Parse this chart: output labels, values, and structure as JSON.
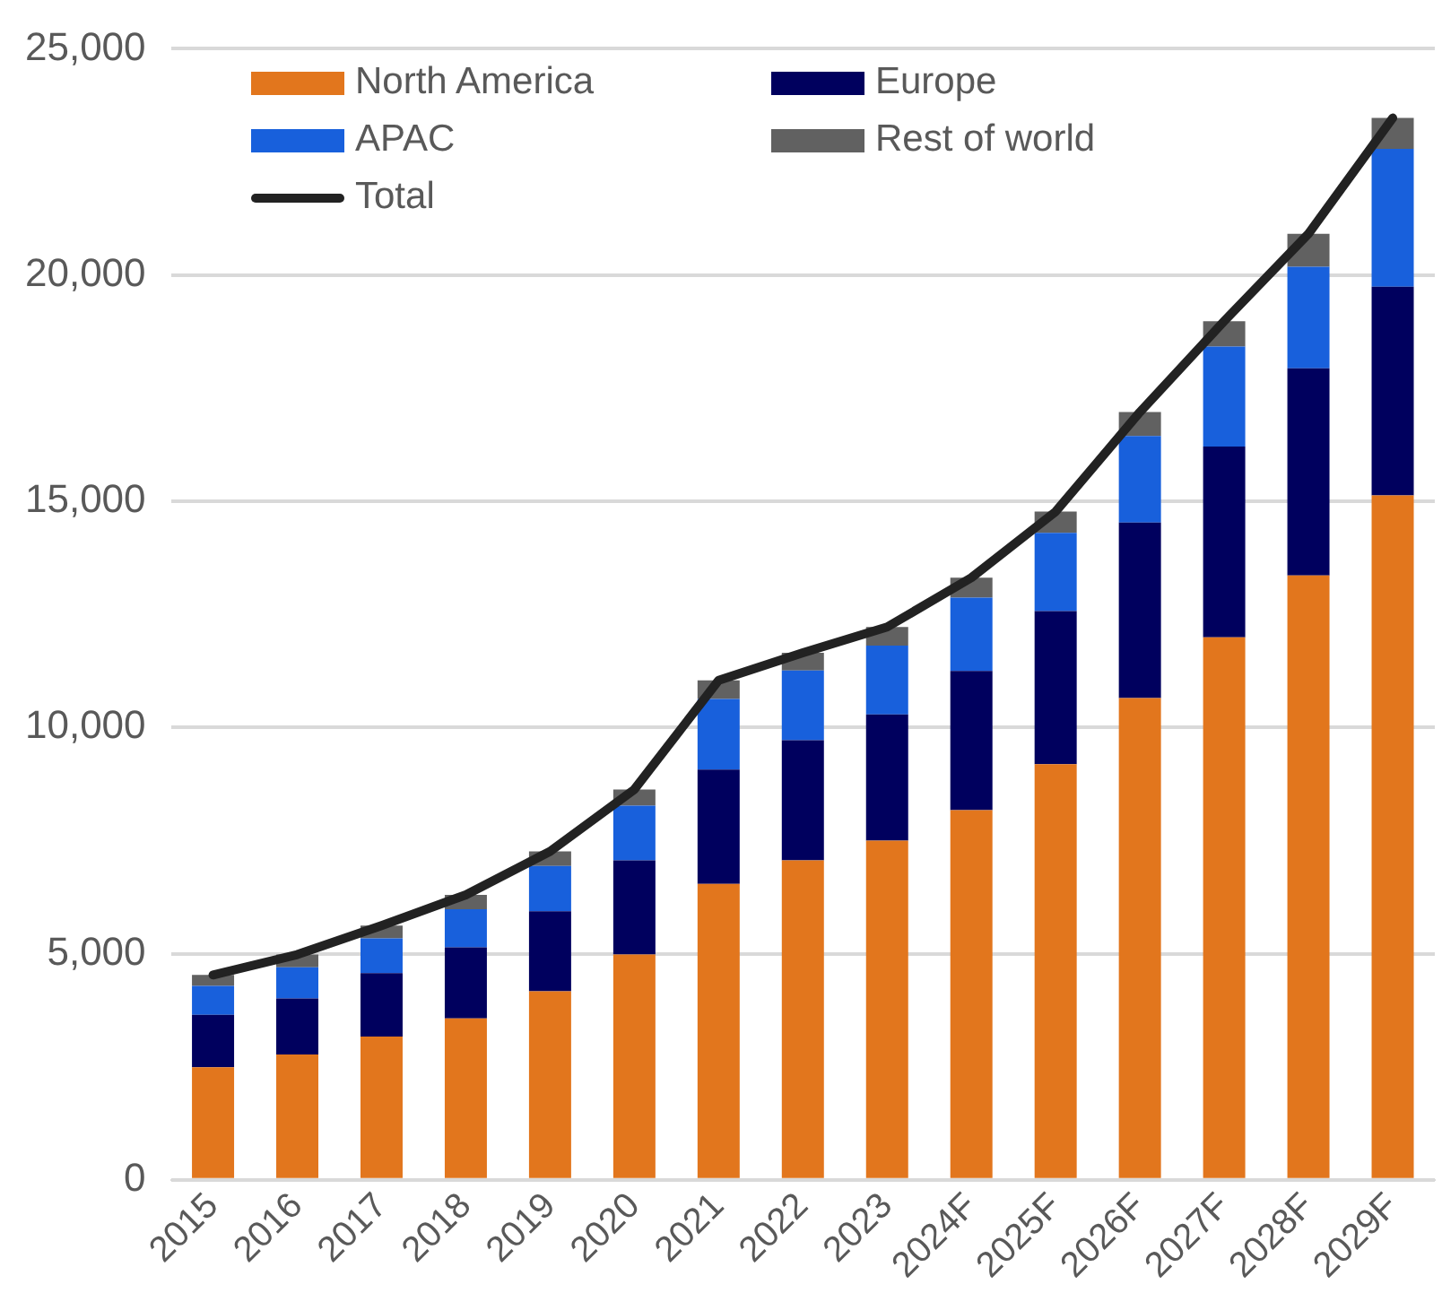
{
  "chart_data": {
    "type": "bar",
    "stacked": true,
    "categories": [
      "2015",
      "2016",
      "2017",
      "2018",
      "2019",
      "2020",
      "2021",
      "2022",
      "2023",
      "2024F",
      "2025F",
      "2026F",
      "2027F",
      "2028F",
      "2029F"
    ],
    "series": [
      {
        "name": "North America",
        "color": "#e2761d",
        "values": [
          2490,
          2770,
          3170,
          3570,
          4170,
          4980,
          6540,
          7060,
          7500,
          8170,
          9190,
          10650,
          11990,
          13360,
          15130
        ]
      },
      {
        "name": "Europe",
        "color": "#00005e",
        "values": [
          1160,
          1240,
          1400,
          1570,
          1770,
          2080,
          2530,
          2660,
          2790,
          3080,
          3380,
          3880,
          4220,
          4580,
          4610
        ]
      },
      {
        "name": "APAC",
        "color": "#1860dc",
        "values": [
          640,
          690,
          770,
          840,
          1000,
          1210,
          1560,
          1540,
          1520,
          1620,
          1730,
          1910,
          2210,
          2240,
          3050
        ]
      },
      {
        "name": "Rest of world",
        "color": "#616161",
        "values": [
          240,
          280,
          280,
          320,
          320,
          360,
          410,
          390,
          410,
          440,
          470,
          530,
          560,
          730,
          680
        ]
      },
      {
        "name": "Total",
        "type": "line",
        "color": "#222222",
        "values": [
          4530,
          4980,
          5620,
          6300,
          7260,
          8630,
          11040,
          11650,
          12220,
          13310,
          14770,
          16970,
          18980,
          20910,
          23470
        ]
      }
    ],
    "ylim": [
      0,
      25000
    ],
    "yticks": [
      {
        "value": 0,
        "label": "0"
      },
      {
        "value": 5000,
        "label": "5,000"
      },
      {
        "value": 10000,
        "label": "10,000"
      },
      {
        "value": 15000,
        "label": "15,000"
      },
      {
        "value": 20000,
        "label": "20,000"
      },
      {
        "value": 25000,
        "label": "25,000"
      }
    ],
    "grid": "y",
    "legend": "top left",
    "marker": "none"
  }
}
